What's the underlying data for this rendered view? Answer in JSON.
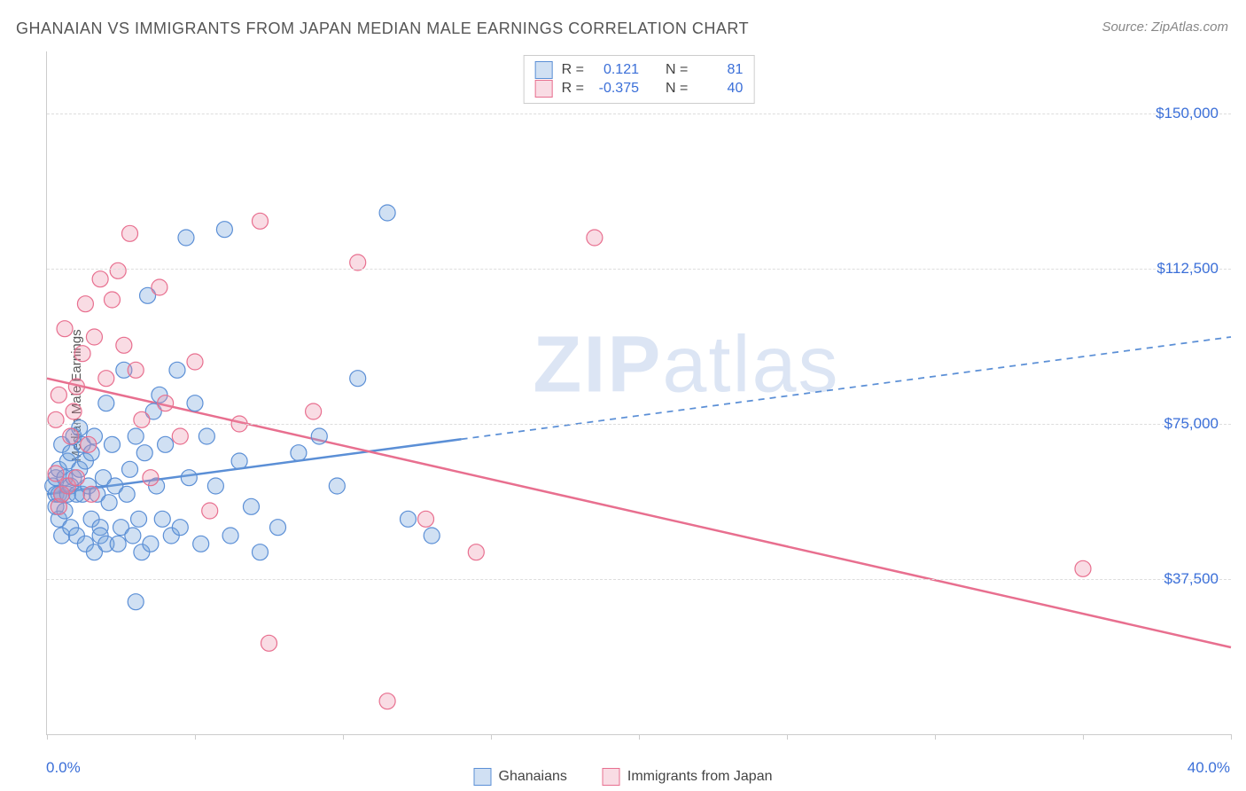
{
  "title": "GHANAIAN VS IMMIGRANTS FROM JAPAN MEDIAN MALE EARNINGS CORRELATION CHART",
  "source": "Source: ZipAtlas.com",
  "ylabel": "Median Male Earnings",
  "watermark_a": "ZIP",
  "watermark_b": "atlas",
  "chart": {
    "type": "scatter-with-regression",
    "xlim": [
      0,
      40
    ],
    "ylim": [
      0,
      165000
    ],
    "x_start_label": "0.0%",
    "x_end_label": "40.0%",
    "x_ticks": [
      0,
      5,
      10,
      15,
      20,
      25,
      30,
      35,
      40
    ],
    "y_gridlines": [
      37500,
      75000,
      112500,
      150000
    ],
    "y_labels": [
      "$37,500",
      "$75,000",
      "$112,500",
      "$150,000"
    ],
    "background_color": "#ffffff",
    "grid_color": "#dddddd",
    "axis_color": "#cccccc",
    "tick_label_color": "#3b6fd8",
    "title_fontsize": 18,
    "axis_fontsize": 15,
    "marker_radius": 9,
    "marker_fill_opacity": 0.35,
    "marker_stroke_width": 1.2,
    "line_width": 2.5,
    "series": [
      {
        "name": "Ghanaians",
        "stroke": "#5b8fd6",
        "fill": "rgba(120,165,220,0.35)",
        "R": "0.121",
        "N": "81",
        "points": [
          [
            0.2,
            60000
          ],
          [
            0.3,
            58000
          ],
          [
            0.3,
            62000
          ],
          [
            0.3,
            55000
          ],
          [
            0.4,
            64000
          ],
          [
            0.4,
            58000
          ],
          [
            0.4,
            52000
          ],
          [
            0.5,
            70000
          ],
          [
            0.5,
            58000
          ],
          [
            0.5,
            48000
          ],
          [
            0.6,
            62000
          ],
          [
            0.6,
            54000
          ],
          [
            0.7,
            66000
          ],
          [
            0.7,
            58000
          ],
          [
            0.8,
            68000
          ],
          [
            0.8,
            60000
          ],
          [
            0.8,
            50000
          ],
          [
            0.9,
            72000
          ],
          [
            0.9,
            62000
          ],
          [
            1.0,
            58000
          ],
          [
            1.0,
            48000
          ],
          [
            1.1,
            74000
          ],
          [
            1.1,
            64000
          ],
          [
            1.2,
            70000
          ],
          [
            1.2,
            58000
          ],
          [
            1.3,
            46000
          ],
          [
            1.3,
            66000
          ],
          [
            1.4,
            60000
          ],
          [
            1.5,
            52000
          ],
          [
            1.5,
            68000
          ],
          [
            1.6,
            44000
          ],
          [
            1.6,
            72000
          ],
          [
            1.7,
            58000
          ],
          [
            1.8,
            50000
          ],
          [
            1.8,
            48000
          ],
          [
            1.9,
            62000
          ],
          [
            2.0,
            80000
          ],
          [
            2.0,
            46000
          ],
          [
            2.1,
            56000
          ],
          [
            2.2,
            70000
          ],
          [
            2.3,
            60000
          ],
          [
            2.4,
            46000
          ],
          [
            2.5,
            50000
          ],
          [
            2.6,
            88000
          ],
          [
            2.7,
            58000
          ],
          [
            2.8,
            64000
          ],
          [
            2.9,
            48000
          ],
          [
            3.0,
            32000
          ],
          [
            3.0,
            72000
          ],
          [
            3.1,
            52000
          ],
          [
            3.2,
            44000
          ],
          [
            3.3,
            68000
          ],
          [
            3.4,
            106000
          ],
          [
            3.5,
            46000
          ],
          [
            3.6,
            78000
          ],
          [
            3.7,
            60000
          ],
          [
            3.8,
            82000
          ],
          [
            3.9,
            52000
          ],
          [
            4.0,
            70000
          ],
          [
            4.2,
            48000
          ],
          [
            4.4,
            88000
          ],
          [
            4.5,
            50000
          ],
          [
            4.7,
            120000
          ],
          [
            4.8,
            62000
          ],
          [
            5.0,
            80000
          ],
          [
            5.2,
            46000
          ],
          [
            5.4,
            72000
          ],
          [
            5.7,
            60000
          ],
          [
            6.0,
            122000
          ],
          [
            6.2,
            48000
          ],
          [
            6.5,
            66000
          ],
          [
            6.9,
            55000
          ],
          [
            7.2,
            44000
          ],
          [
            7.8,
            50000
          ],
          [
            8.5,
            68000
          ],
          [
            9.2,
            72000
          ],
          [
            9.8,
            60000
          ],
          [
            10.5,
            86000
          ],
          [
            11.5,
            126000
          ],
          [
            12.2,
            52000
          ],
          [
            13.0,
            48000
          ]
        ],
        "regression": {
          "x1": 0,
          "y1": 58000,
          "x2": 40,
          "y2": 96000,
          "solid_until_x": 14
        }
      },
      {
        "name": "Immigrants from Japan",
        "stroke": "#e86f8f",
        "fill": "rgba(235,140,165,0.30)",
        "R": "-0.375",
        "N": "40",
        "points": [
          [
            0.3,
            63000
          ],
          [
            0.3,
            76000
          ],
          [
            0.4,
            82000
          ],
          [
            0.4,
            55000
          ],
          [
            0.5,
            58000
          ],
          [
            0.6,
            98000
          ],
          [
            0.7,
            60000
          ],
          [
            0.8,
            72000
          ],
          [
            0.9,
            78000
          ],
          [
            1.0,
            62000
          ],
          [
            1.0,
            84000
          ],
          [
            1.2,
            92000
          ],
          [
            1.3,
            104000
          ],
          [
            1.4,
            70000
          ],
          [
            1.5,
            58000
          ],
          [
            1.6,
            96000
          ],
          [
            1.8,
            110000
          ],
          [
            2.0,
            86000
          ],
          [
            2.2,
            105000
          ],
          [
            2.4,
            112000
          ],
          [
            2.6,
            94000
          ],
          [
            2.8,
            121000
          ],
          [
            3.0,
            88000
          ],
          [
            3.2,
            76000
          ],
          [
            3.5,
            62000
          ],
          [
            3.8,
            108000
          ],
          [
            4.0,
            80000
          ],
          [
            4.5,
            72000
          ],
          [
            5.0,
            90000
          ],
          [
            5.5,
            54000
          ],
          [
            6.5,
            75000
          ],
          [
            7.2,
            124000
          ],
          [
            7.5,
            22000
          ],
          [
            9.0,
            78000
          ],
          [
            10.5,
            114000
          ],
          [
            11.5,
            8000
          ],
          [
            12.8,
            52000
          ],
          [
            14.5,
            44000
          ],
          [
            18.5,
            120000
          ],
          [
            35.0,
            40000
          ]
        ],
        "regression": {
          "x1": 0,
          "y1": 86000,
          "x2": 40,
          "y2": 21000,
          "solid_until_x": 40
        }
      }
    ],
    "stats_labels": {
      "R": "R =",
      "N": "N ="
    },
    "legend": {
      "series1_label": "Ghanaians",
      "series2_label": "Immigrants from Japan"
    }
  }
}
